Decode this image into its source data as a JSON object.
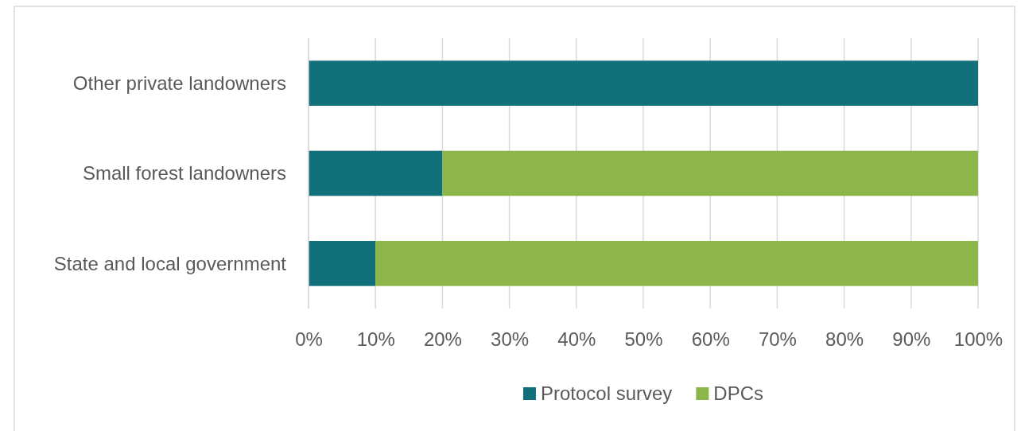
{
  "chart_data": {
    "type": "bar",
    "orientation": "horizontal",
    "stacked": true,
    "categories": [
      "Other private landowners",
      "Small forest landowners",
      "State and local government"
    ],
    "series": [
      {
        "name": "Protocol survey",
        "color": "#11707a",
        "values": [
          100,
          20,
          10
        ]
      },
      {
        "name": "DPCs",
        "color": "#8db64a",
        "values": [
          0,
          80,
          90
        ]
      }
    ],
    "xlim": [
      0,
      100
    ],
    "xticks": [
      {
        "value": 0,
        "label": "0%"
      },
      {
        "value": 10,
        "label": "10%"
      },
      {
        "value": 20,
        "label": "20%"
      },
      {
        "value": 30,
        "label": "30%"
      },
      {
        "value": 40,
        "label": "40%"
      },
      {
        "value": 50,
        "label": "50%"
      },
      {
        "value": 60,
        "label": "60%"
      },
      {
        "value": 70,
        "label": "70%"
      },
      {
        "value": 80,
        "label": "80%"
      },
      {
        "value": 90,
        "label": "90%"
      },
      {
        "value": 100,
        "label": "100%"
      }
    ],
    "grid": "x",
    "legend": "bottom"
  }
}
